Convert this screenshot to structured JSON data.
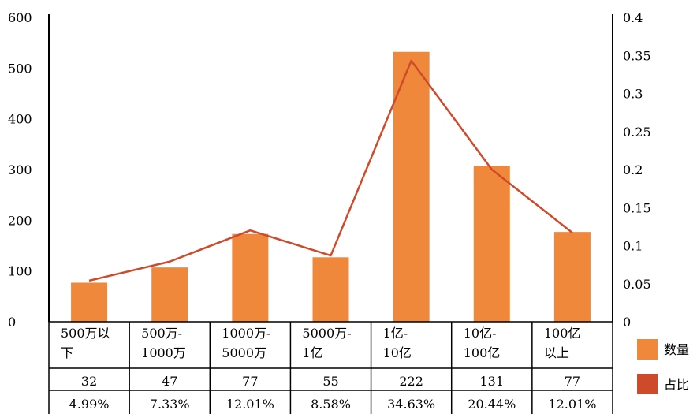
{
  "chart_data": {
    "type": "bar",
    "categories": [
      "500万以下",
      "500万-1000万",
      "1000万-5000万",
      "5000万-1亿",
      "1亿-10亿",
      "10亿-100亿",
      "100亿以上"
    ],
    "category_lines": [
      [
        "500万以",
        "下"
      ],
      [
        "500万-",
        "1000万"
      ],
      [
        "1000万-",
        "5000万"
      ],
      [
        "5000万-",
        "1亿"
      ],
      [
        "1亿-",
        "10亿"
      ],
      [
        "10亿-",
        "100亿"
      ],
      [
        "100亿",
        "以上"
      ]
    ],
    "series": [
      {
        "name": "数量",
        "type": "bar",
        "axis": "left",
        "values": [
          77,
          107,
          173,
          127,
          532,
          307,
          177
        ],
        "color": "#f0883b"
      },
      {
        "name": "占比",
        "type": "line",
        "axis": "right",
        "values": [
          0.054,
          0.079,
          0.12,
          0.087,
          0.343,
          0.2,
          0.117
        ],
        "color": "#cd4a2a"
      }
    ],
    "y_left": {
      "min": 0,
      "max": 600,
      "ticks": [
        "0",
        "100",
        "200",
        "300",
        "400",
        "500",
        "600"
      ]
    },
    "y_right": {
      "min": 0,
      "max": 0.4,
      "ticks": [
        "0",
        "0.05",
        "0.1",
        "0.15",
        "0.2",
        "0.25",
        "0.3",
        "0.35",
        "0.4"
      ]
    },
    "table": {
      "row1": [
        "32",
        "47",
        "77",
        "55",
        "222",
        "131",
        "77"
      ],
      "row2": [
        "4.99%",
        "7.33%",
        "12.01%",
        "8.58%",
        "34.63%",
        "20.44%",
        "12.01%"
      ]
    },
    "legend": {
      "position": "right",
      "items": [
        {
          "label": "数量",
          "color": "#f0883b"
        },
        {
          "label": "占比",
          "color": "#cd4a2a"
        }
      ]
    },
    "grid": false
  }
}
